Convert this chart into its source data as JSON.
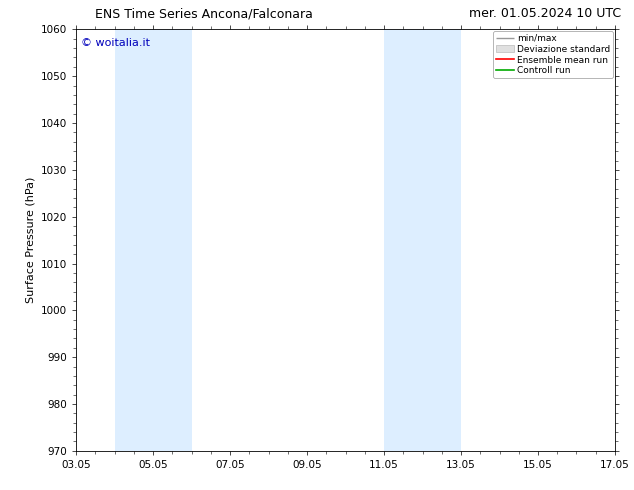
{
  "title_left": "ENS Time Series Ancona/Falconara",
  "title_right": "mer. 01.05.2024 10 UTC",
  "ylabel": "Surface Pressure (hPa)",
  "ylim": [
    970,
    1060
  ],
  "yticks": [
    970,
    980,
    990,
    1000,
    1010,
    1020,
    1030,
    1040,
    1050,
    1060
  ],
  "xtick_labels": [
    "03.05",
    "05.05",
    "07.05",
    "09.05",
    "11.05",
    "13.05",
    "15.05",
    "17.05"
  ],
  "xtick_positions": [
    0,
    2,
    4,
    6,
    8,
    10,
    12,
    14
  ],
  "blue_bands": [
    {
      "start": 1.0,
      "end": 3.0
    },
    {
      "start": 8.0,
      "end": 10.0
    }
  ],
  "band_color": "#ddeeff",
  "watermark_text": "© woitalia.it",
  "watermark_color": "#0000bb",
  "legend_labels": [
    "min/max",
    "Deviazione standard",
    "Ensemble mean run",
    "Controll run"
  ],
  "legend_line_colors": [
    "#999999",
    "#cccccc",
    "#ff0000",
    "#00aa00"
  ],
  "background_color": "#ffffff",
  "fig_width": 6.34,
  "fig_height": 4.9,
  "dpi": 100,
  "title_fontsize": 9,
  "ylabel_fontsize": 8,
  "tick_fontsize": 7.5,
  "watermark_fontsize": 8
}
